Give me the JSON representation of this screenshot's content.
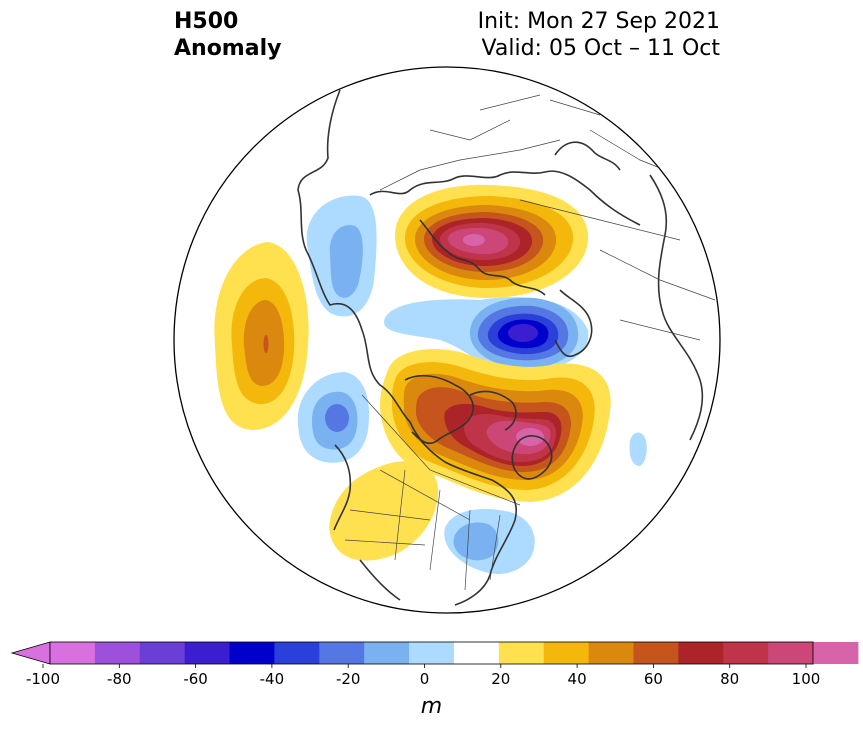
{
  "title": {
    "left_line1": "H500",
    "left_line2": "Anomaly",
    "init": "Init: Mon 27 Sep 2021",
    "valid": "Valid: 05 Oct – 11 Oct"
  },
  "colorbar": {
    "unit": "m",
    "tick_labels": [
      "-100",
      "-80",
      "-60",
      "-40",
      "-20",
      "0",
      "20",
      "40",
      "60",
      "80",
      "100"
    ],
    "levels": [
      -100,
      -90,
      -80,
      -70,
      -60,
      -50,
      -40,
      -30,
      -20,
      -10,
      10,
      20,
      30,
      40,
      50,
      60,
      70,
      80,
      90,
      100
    ],
    "colors": [
      "#d970e0",
      "#9d50dc",
      "#6b3fd6",
      "#3b1ed0",
      "#0000cd",
      "#2a40d8",
      "#5577e4",
      "#79b1f1",
      "#acdbff",
      "#ffffff",
      "#ffe14f",
      "#f3b80b",
      "#db880e",
      "#c5541d",
      "#ad2428",
      "#bf3448",
      "#cc4777",
      "#d764a8",
      "#e87ed8"
    ],
    "extend": "both"
  },
  "map": {
    "projection": "north-polar-stereographic",
    "colors": {
      "land_outline": "#333333",
      "political_border": "#444444"
    },
    "anomaly_centers": [
      {
        "region": "Northern Europe / Scandinavia",
        "sign": "positive",
        "peak_m": 80
      },
      {
        "region": "Greenland / Baffin Bay",
        "sign": "positive",
        "peak_m": 80
      },
      {
        "region": "Western Siberia / Kara Sea",
        "sign": "negative",
        "peak_m": -60
      },
      {
        "region": "Gulf of Alaska",
        "sign": "negative",
        "peak_m": -30
      },
      {
        "region": "Central Pacific",
        "sign": "positive",
        "peak_m": 50
      },
      {
        "region": "Western North America",
        "sign": "positive",
        "peak_m": 10
      },
      {
        "region": "Eastern United States",
        "sign": "negative",
        "peak_m": -20
      }
    ]
  }
}
